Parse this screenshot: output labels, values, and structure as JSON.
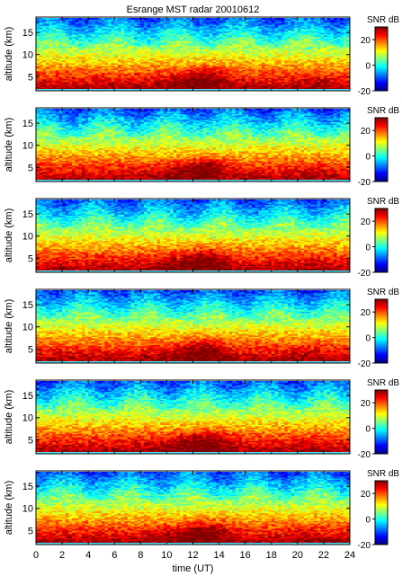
{
  "chart_data": {
    "type": "heatmap",
    "title": "Esrange MST radar 20010612",
    "xlabel": "time (UT)",
    "ylabel": "altitude (km)",
    "xlim": [
      0,
      24
    ],
    "ylim": [
      1.8,
      18.5
    ],
    "xticks": [
      0,
      2,
      4,
      6,
      8,
      10,
      12,
      14,
      16,
      18,
      20,
      22,
      24
    ],
    "yticks": [
      5,
      10,
      15
    ],
    "colorbar": {
      "label": "SNR dB",
      "range": [
        -20,
        30
      ],
      "ticks": [
        -20,
        0,
        20
      ]
    },
    "colormap": "jet",
    "panels": [
      {
        "z_min": 2.1,
        "z_max": 18.3,
        "pattern": "time-altitude SNR; strongest (~25-30 dB) below 5 km, decreasing with altitude to about -10 dB above 15 km; maximum near 12-14 UT"
      },
      {
        "z_min": 2.1,
        "z_max": 18.3,
        "pattern": "same as panel 1"
      },
      {
        "z_min": 2.1,
        "z_max": 18.3,
        "pattern": "same as panel 1"
      },
      {
        "z_min": 2.1,
        "z_max": 18.3,
        "pattern": "same as panel 1"
      },
      {
        "z_min": 2.1,
        "z_max": 18.3,
        "pattern": "same as panel 1"
      },
      {
        "z_min": 2.1,
        "z_max": 18.3,
        "pattern": "same as panel 1"
      }
    ]
  }
}
